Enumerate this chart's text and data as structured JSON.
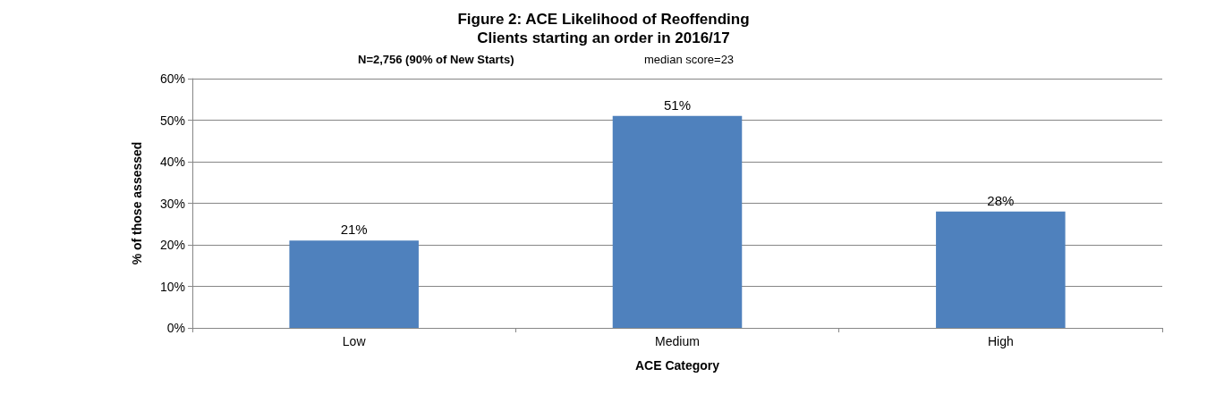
{
  "chart_data": {
    "type": "bar",
    "title": "Figure 2: ACE Likelihood of Reoffending",
    "subtitle": "Clients starting an order in 2016/17",
    "annotations": [
      "N=2,756 (90% of New Starts)",
      "median score=23"
    ],
    "xlabel": "ACE Category",
    "ylabel": "% of those assessed",
    "categories": [
      "Low",
      "Medium",
      "High"
    ],
    "values": [
      21,
      51,
      28
    ],
    "value_labels": [
      "21%",
      "51%",
      "28%"
    ],
    "color": "#4f81bd",
    "ylim": [
      0,
      60
    ],
    "yticks": [
      {
        "value": 0,
        "label": "0%"
      },
      {
        "value": 10,
        "label": "10%"
      },
      {
        "value": 20,
        "label": "20%"
      },
      {
        "value": 30,
        "label": "30%"
      },
      {
        "value": 40,
        "label": "40%"
      },
      {
        "value": 50,
        "label": "50%"
      },
      {
        "value": 60,
        "label": "60%"
      }
    ],
    "grid": "y"
  }
}
